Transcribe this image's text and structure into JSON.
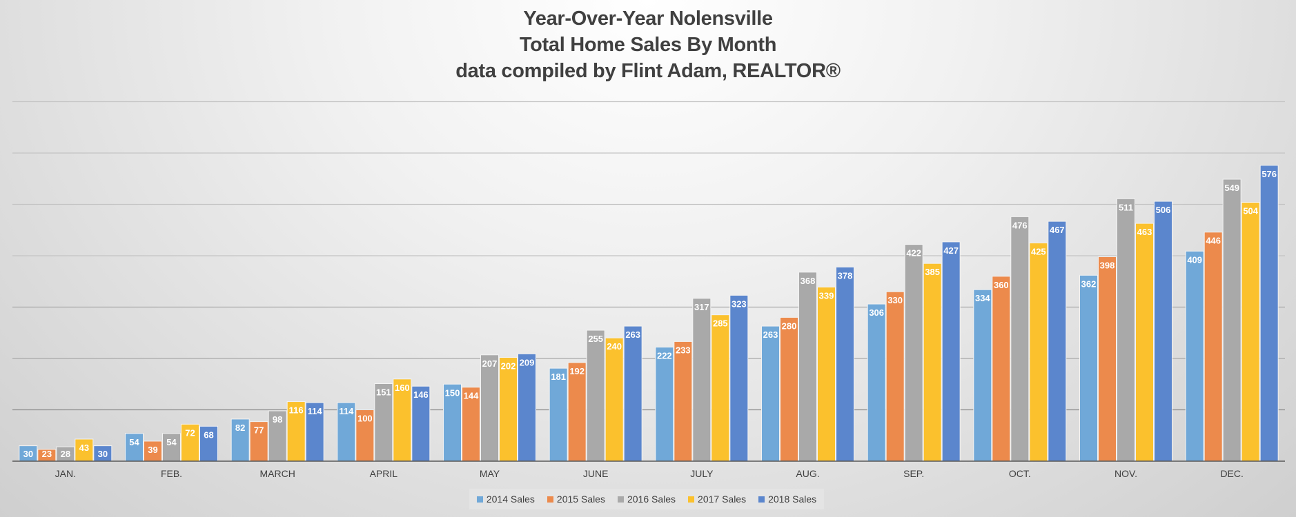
{
  "title_lines": [
    "Year-Over-Year Nolensville",
    "Total Home Sales By Month",
    "data compiled by Flint Adam, REALTOR®"
  ],
  "chart_data": {
    "type": "bar",
    "title": "Year-Over-Year Nolensville Total Home Sales By Month data compiled by Flint Adam, REALTOR®",
    "xlabel": "",
    "ylabel": "",
    "categories": [
      "JAN.",
      "FEB.",
      "MARCH",
      "APRIL",
      "MAY",
      "JUNE",
      "JULY",
      "AUG.",
      "SEP.",
      "OCT.",
      "NOV.",
      "DEC."
    ],
    "series": [
      {
        "name": "2014 Sales",
        "color": "#70a8d8",
        "values": [
          30,
          54,
          82,
          114,
          150,
          181,
          222,
          263,
          306,
          334,
          362,
          409
        ]
      },
      {
        "name": "2015 Sales",
        "color": "#ec8a4c",
        "values": [
          23,
          39,
          77,
          100,
          144,
          192,
          233,
          280,
          330,
          360,
          398,
          446
        ]
      },
      {
        "name": "2016 Sales",
        "color": "#a9a9a9",
        "values": [
          28,
          54,
          98,
          151,
          207,
          255,
          317,
          368,
          422,
          476,
          511,
          549
        ]
      },
      {
        "name": "2017 Sales",
        "color": "#fbc12d",
        "values": [
          43,
          72,
          116,
          160,
          202,
          240,
          285,
          339,
          385,
          425,
          463,
          504
        ]
      },
      {
        "name": "2018 Sales",
        "color": "#5b86cd",
        "values": [
          30,
          68,
          114,
          146,
          209,
          263,
          323,
          378,
          427,
          467,
          506,
          576
        ]
      }
    ],
    "ylim": [
      0,
      700
    ],
    "gridlines": [
      100,
      200,
      300,
      400,
      500,
      600,
      700
    ],
    "y_tick_labels_visible": false,
    "data_labels": true,
    "legend_position": "bottom"
  }
}
